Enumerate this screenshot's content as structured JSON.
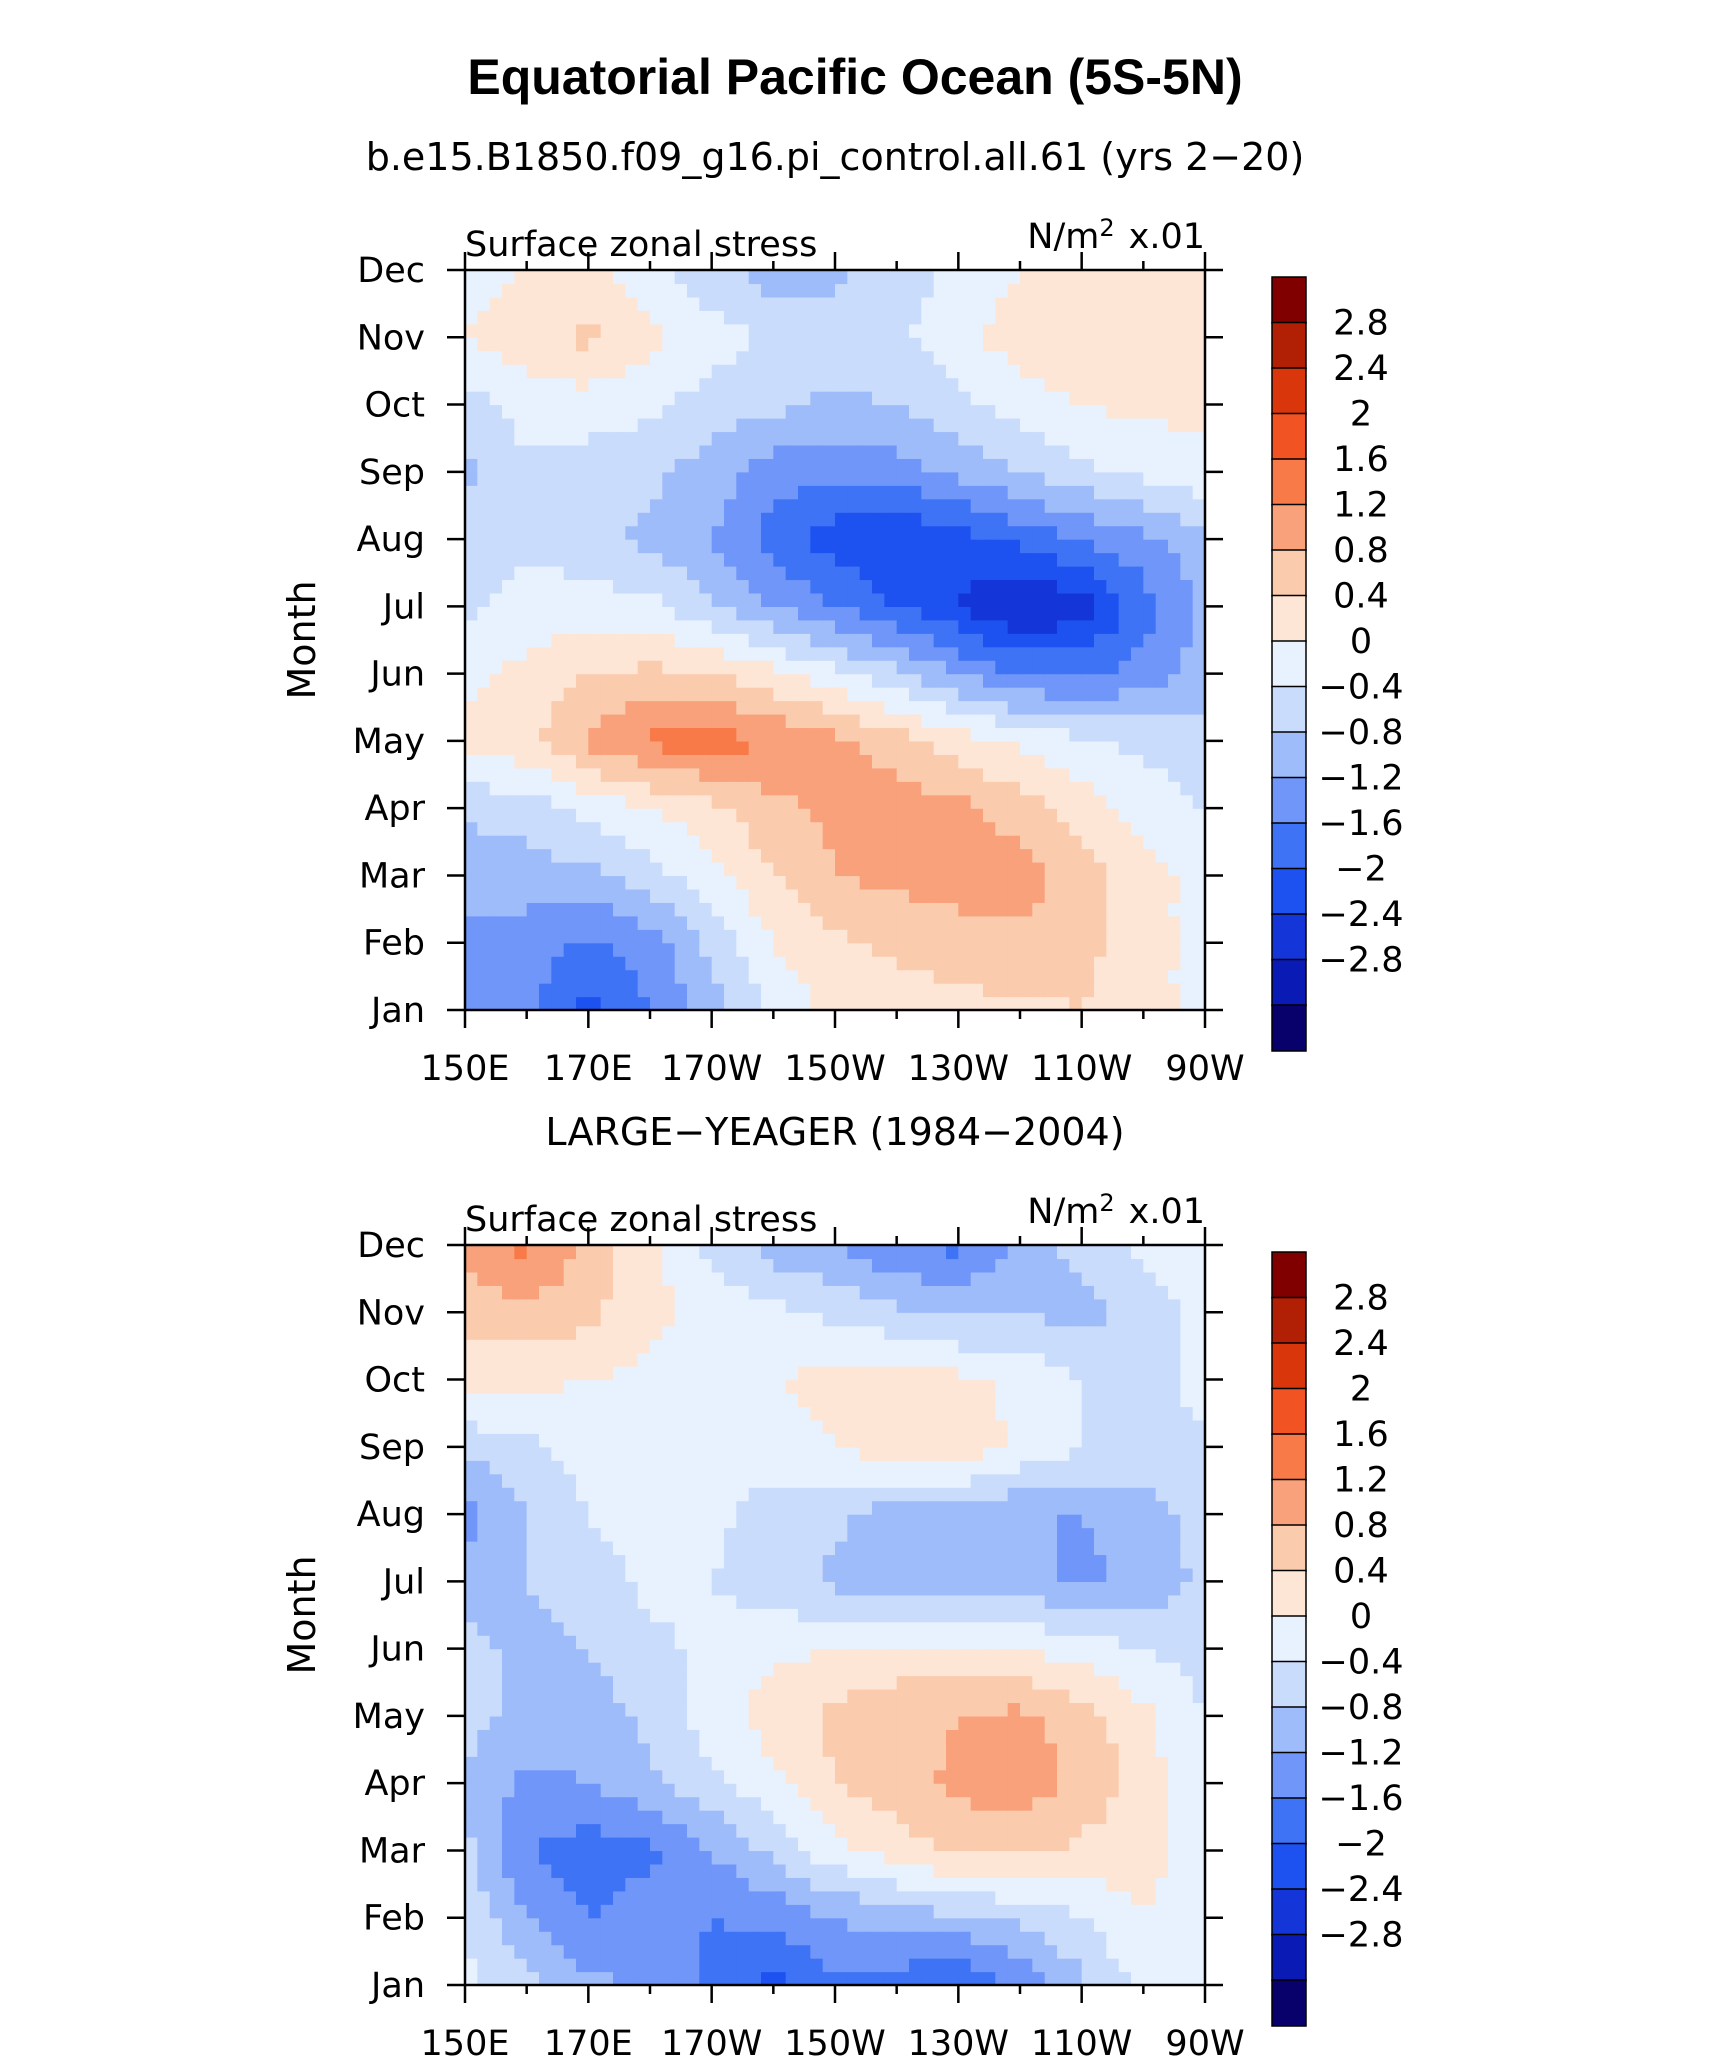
{
  "title": "Equatorial Pacific Ocean (5S-5N)",
  "chart_data": [
    {
      "type": "heatmap",
      "title": "b.e15.B1850.f09_g16.pi_control.all.61 (yrs 2−20)",
      "left_label": "Surface zonal stress",
      "units": "N/m² x.01",
      "units_base": "N/m",
      "units_sup": "2",
      "units_scale": "x.01",
      "ylabel": "Month",
      "xlabel": "",
      "x_ticks": [
        "150E",
        "170E",
        "170W",
        "150W",
        "130W",
        "110W",
        "90W"
      ],
      "x_tick_lon": [
        150,
        170,
        190,
        210,
        230,
        250,
        270
      ],
      "x_lon_range": [
        150,
        270
      ],
      "y_ticks": [
        "Jan",
        "Feb",
        "Mar",
        "Apr",
        "May",
        "Jun",
        "Jul",
        "Aug",
        "Sep",
        "Oct",
        "Nov",
        "Dec"
      ],
      "grid_lon": [
        150,
        160,
        170,
        180,
        190,
        200,
        210,
        220,
        230,
        240,
        250,
        260,
        270
      ],
      "values": [
        [
          -1.0,
          -1.1,
          -1.7,
          -1.2,
          -0.6,
          0.1,
          0.5,
          0.6,
          0.7,
          0.7,
          0.8,
          0.6,
          0.2
        ],
        [
          -0.9,
          -1.0,
          -1.3,
          -1.0,
          -0.3,
          0.4,
          0.7,
          0.9,
          1.0,
          1.1,
          0.9,
          0.6,
          0.2
        ],
        [
          -0.7,
          -0.6,
          -0.5,
          -0.2,
          0.3,
          0.8,
          1.2,
          1.3,
          1.4,
          1.4,
          1.0,
          0.6,
          0.2
        ],
        [
          -0.3,
          -0.2,
          0.1,
          0.4,
          0.7,
          1.1,
          1.3,
          1.4,
          1.3,
          1.0,
          0.6,
          0.2,
          0.0
        ],
        [
          0.5,
          0.7,
          1.3,
          1.7,
          1.8,
          1.6,
          1.3,
          1.0,
          0.6,
          0.3,
          0.1,
          -0.1,
          -0.2
        ],
        [
          0.3,
          0.5,
          0.8,
          0.9,
          0.8,
          0.5,
          0.1,
          -0.3,
          -0.8,
          -1.2,
          -1.3,
          -1.0,
          -0.6
        ],
        [
          -0.1,
          0.2,
          0.2,
          0.1,
          -0.3,
          -0.8,
          -1.2,
          -1.6,
          -2.0,
          -2.5,
          -2.2,
          -1.4,
          -0.7
        ],
        [
          -0.2,
          -0.1,
          -0.3,
          -0.5,
          -0.8,
          -1.4,
          -1.8,
          -2.0,
          -1.8,
          -1.5,
          -1.2,
          -0.9,
          -0.5
        ],
        [
          -0.5,
          -0.1,
          -0.2,
          -0.3,
          -0.6,
          -1.0,
          -1.1,
          -1.0,
          -0.7,
          -0.4,
          -0.1,
          0.1,
          0.3
        ],
        [
          -0.2,
          0.2,
          0.2,
          0.1,
          -0.2,
          -0.3,
          -0.5,
          -0.4,
          -0.1,
          0.2,
          0.4,
          0.5,
          0.5
        ],
        [
          0.4,
          0.6,
          0.9,
          0.5,
          0.2,
          -0.1,
          -0.2,
          -0.1,
          0.3,
          0.6,
          0.8,
          0.7,
          0.6
        ],
        [
          0.3,
          0.4,
          0.5,
          0.1,
          -0.3,
          -0.6,
          -0.5,
          -0.2,
          0.1,
          0.4,
          0.5,
          0.5,
          0.4
        ]
      ],
      "colorbar_labels": [
        "2.8",
        "2.4",
        "2",
        "1.6",
        "1.2",
        "0.8",
        "0.4",
        "0",
        "−0.4",
        "−0.8",
        "−1.2",
        "−1.6",
        "−2",
        "−2.4",
        "−2.8"
      ]
    },
    {
      "type": "heatmap",
      "title": "LARGE−YEAGER (1984−2004)",
      "left_label": "Surface zonal stress",
      "units": "N/m² x.01",
      "units_base": "N/m",
      "units_sup": "2",
      "units_scale": "x.01",
      "ylabel": "Month",
      "xlabel": "",
      "x_ticks": [
        "150E",
        "170E",
        "170W",
        "150W",
        "130W",
        "110W",
        "90W"
      ],
      "x_tick_lon": [
        150,
        170,
        190,
        210,
        230,
        250,
        270
      ],
      "x_lon_range": [
        150,
        270
      ],
      "y_ticks": [
        "Jan",
        "Feb",
        "Mar",
        "Apr",
        "May",
        "Jun",
        "Jul",
        "Aug",
        "Sep",
        "Oct",
        "Nov",
        "Dec"
      ],
      "grid_lon": [
        150,
        160,
        170,
        180,
        190,
        200,
        210,
        220,
        230,
        240,
        250,
        260,
        270
      ],
      "values": [
        [
          0.1,
          -0.3,
          -0.7,
          -0.9,
          -1.3,
          -1.7,
          -1.3,
          -1.4,
          -1.7,
          -1.1,
          -0.5,
          0.1,
          0.2
        ],
        [
          0.0,
          -0.8,
          -1.2,
          -1.0,
          -1.2,
          -1.1,
          -0.8,
          -0.6,
          -0.5,
          -0.3,
          0.0,
          0.4,
          0.2
        ],
        [
          -0.3,
          -1.2,
          -1.4,
          -1.3,
          -0.8,
          -0.3,
          0.3,
          0.6,
          0.9,
          0.9,
          0.7,
          0.6,
          0.1
        ],
        [
          -0.4,
          -0.9,
          -0.8,
          -0.5,
          -0.1,
          0.3,
          0.8,
          1.0,
          1.3,
          1.4,
          1.1,
          0.6,
          0.1
        ],
        [
          -0.3,
          -0.5,
          -0.6,
          -0.3,
          0.2,
          0.6,
          0.9,
          1.1,
          1.2,
          1.3,
          1.0,
          0.5,
          0.0
        ],
        [
          -0.3,
          -0.5,
          -0.4,
          -0.1,
          0.1,
          0.3,
          0.4,
          0.5,
          0.5,
          0.4,
          0.2,
          0.0,
          -0.2
        ],
        [
          -0.6,
          -0.4,
          -0.2,
          0.1,
          0.0,
          -0.2,
          -0.5,
          -0.7,
          -0.5,
          -0.6,
          -0.9,
          -0.7,
          -0.3
        ],
        [
          -1.0,
          -0.4,
          0.0,
          0.2,
          0.1,
          -0.2,
          -0.3,
          -0.6,
          -0.6,
          -0.8,
          -0.8,
          -0.6,
          -0.2
        ],
        [
          -0.3,
          -0.1,
          0.2,
          0.3,
          0.2,
          0.2,
          0.4,
          0.6,
          0.7,
          0.3,
          0.0,
          -0.2,
          -0.1
        ],
        [
          0.6,
          0.5,
          0.4,
          0.3,
          0.3,
          0.4,
          0.5,
          0.6,
          0.5,
          0.3,
          0.0,
          -0.2,
          0.2
        ],
        [
          0.9,
          1.1,
          0.9,
          0.5,
          0.3,
          0.1,
          -0.1,
          -0.3,
          -0.5,
          -0.4,
          -0.6,
          -0.2,
          0.1
        ],
        [
          1.4,
          1.7,
          1.1,
          0.5,
          -0.1,
          -0.6,
          -0.8,
          -1.2,
          -1.3,
          -0.7,
          -0.2,
          0.1,
          0.2
        ]
      ],
      "colorbar_labels": [
        "2.8",
        "2.4",
        "2",
        "1.6",
        "1.2",
        "0.8",
        "0.4",
        "0",
        "−0.4",
        "−0.8",
        "−1.2",
        "−1.6",
        "−2",
        "−2.4",
        "−2.8"
      ]
    }
  ],
  "colorbar": {
    "levels": [
      -2.8,
      -2.4,
      -2.0,
      -1.6,
      -1.2,
      -0.8,
      -0.4,
      0.0,
      0.4,
      0.8,
      1.2,
      1.6,
      2.0,
      2.4,
      2.8
    ],
    "colors": [
      "#08006b",
      "#0a1ab5",
      "#1436d9",
      "#1e52f0",
      "#3f73f5",
      "#6f96f8",
      "#9fbcfa",
      "#cadcfc",
      "#e8f1fe",
      "#fde6d6",
      "#fbcbae",
      "#f9a17b",
      "#f77a48",
      "#f25322",
      "#da360b",
      "#b11f05",
      "#800000"
    ]
  }
}
